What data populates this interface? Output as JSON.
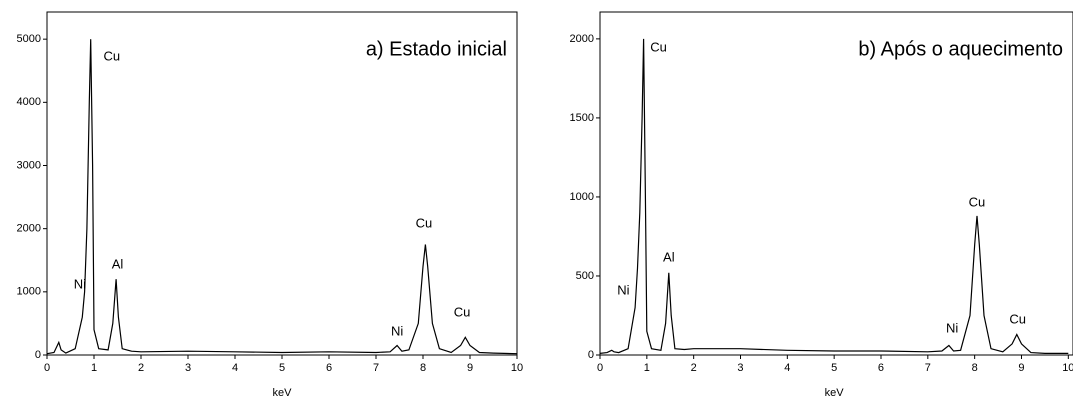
{
  "chart_data": [
    {
      "type": "line",
      "title": "a) Estado inicial",
      "xlabel": "keV",
      "color": "#000000",
      "x": [
        0,
        0.15,
        0.25,
        0.3,
        0.4,
        0.6,
        0.75,
        0.8,
        0.85,
        0.9,
        0.93,
        0.97,
        1.0,
        1.1,
        1.3,
        1.4,
        1.47,
        1.52,
        1.6,
        1.8,
        2,
        3,
        4,
        5,
        6,
        7,
        7.3,
        7.45,
        7.55,
        7.7,
        7.9,
        8.0,
        8.05,
        8.1,
        8.2,
        8.35,
        8.6,
        8.8,
        8.9,
        9.0,
        9.2,
        9.5,
        10
      ],
      "values": [
        20,
        40,
        200,
        80,
        30,
        100,
        600,
        1000,
        2000,
        4000,
        5000,
        3000,
        400,
        100,
        80,
        500,
        1200,
        600,
        100,
        60,
        50,
        60,
        50,
        40,
        50,
        40,
        50,
        150,
        60,
        80,
        500,
        1400,
        1750,
        1400,
        500,
        100,
        40,
        150,
        280,
        150,
        40,
        30,
        20
      ],
      "xlim": [
        0,
        10
      ],
      "xticks": [
        0,
        1,
        2,
        3,
        4,
        5,
        6,
        7,
        8,
        9,
        10
      ],
      "ylim": [
        0,
        5430
      ],
      "yticks": [
        0,
        1000,
        2000,
        3000,
        4000,
        5000
      ],
      "annotations": [
        {
          "text": "Ni",
          "x": 0.7,
          "y": 1107
        },
        {
          "text": "Cu",
          "x": 1.38,
          "y": 4715
        },
        {
          "text": "Al",
          "x": 1.5,
          "y": 1420
        },
        {
          "text": "Ni",
          "x": 7.45,
          "y": 360
        },
        {
          "text": "Cu",
          "x": 8.02,
          "y": 2070
        },
        {
          "text": "Cu",
          "x": 8.83,
          "y": 660
        }
      ]
    },
    {
      "type": "line",
      "title": "b) Após o aquecimento",
      "xlabel": "keV",
      "color": "#000000",
      "x": [
        0,
        0.15,
        0.25,
        0.3,
        0.4,
        0.6,
        0.75,
        0.8,
        0.85,
        0.9,
        0.93,
        0.97,
        1.0,
        1.1,
        1.3,
        1.4,
        1.47,
        1.52,
        1.6,
        1.8,
        2,
        3,
        4,
        5,
        6,
        7,
        7.3,
        7.45,
        7.55,
        7.7,
        7.9,
        8.0,
        8.05,
        8.1,
        8.2,
        8.35,
        8.6,
        8.8,
        8.9,
        9.0,
        9.2,
        9.5,
        10
      ],
      "values": [
        10,
        15,
        30,
        20,
        15,
        40,
        300,
        550,
        900,
        1500,
        2000,
        1000,
        150,
        40,
        30,
        200,
        520,
        250,
        40,
        35,
        40,
        40,
        30,
        25,
        25,
        20,
        25,
        60,
        25,
        30,
        250,
        700,
        880,
        700,
        250,
        40,
        20,
        70,
        130,
        70,
        15,
        10,
        10
      ],
      "xlim": [
        0,
        10.1
      ],
      "xticks": [
        0,
        1,
        2,
        3,
        4,
        5,
        6,
        7,
        8,
        9,
        10
      ],
      "ylim": [
        0,
        2170
      ],
      "yticks": [
        0,
        500,
        1000,
        1500,
        2000
      ],
      "annotations": [
        {
          "text": "Ni",
          "x": 0.5,
          "y": 405
        },
        {
          "text": "Cu",
          "x": 1.25,
          "y": 1943
        },
        {
          "text": "Al",
          "x": 1.47,
          "y": 614
        },
        {
          "text": "Ni",
          "x": 7.52,
          "y": 165
        },
        {
          "text": "Cu",
          "x": 8.05,
          "y": 962
        },
        {
          "text": "Cu",
          "x": 8.92,
          "y": 222
        }
      ]
    }
  ]
}
